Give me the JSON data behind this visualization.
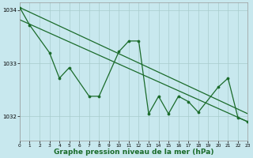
{
  "background_color": "#c8e8ee",
  "grid_color": "#a8cccc",
  "line_color": "#1a6b2a",
  "xlabel": "Graphe pression niveau de la mer (hPa)",
  "xlabel_fontsize": 6.5,
  "xlim": [
    0,
    23
  ],
  "ylim": [
    1031.55,
    1034.15
  ],
  "yticks": [
    1032,
    1033,
    1034
  ],
  "xticks": [
    0,
    1,
    2,
    3,
    4,
    5,
    6,
    7,
    8,
    9,
    10,
    11,
    12,
    13,
    14,
    15,
    16,
    17,
    18,
    19,
    20,
    21,
    22,
    23
  ],
  "line1_x": [
    0,
    23
  ],
  "line1_y": [
    1034.05,
    1032.05
  ],
  "line2_x": [
    0,
    23
  ],
  "line2_y": [
    1033.82,
    1031.9
  ],
  "line3_x": [
    0,
    1,
    3,
    4,
    5,
    7,
    8,
    10,
    11,
    12,
    13,
    14,
    15,
    16,
    17,
    18,
    20,
    21,
    22,
    23
  ],
  "line3_y": [
    1034.05,
    1033.72,
    1033.2,
    1032.72,
    1032.92,
    1032.38,
    1032.38,
    1033.22,
    1033.42,
    1033.42,
    1032.05,
    1032.38,
    1032.05,
    1032.38,
    1032.28,
    1032.08,
    1032.55,
    1032.72,
    1031.98,
    1031.9
  ]
}
